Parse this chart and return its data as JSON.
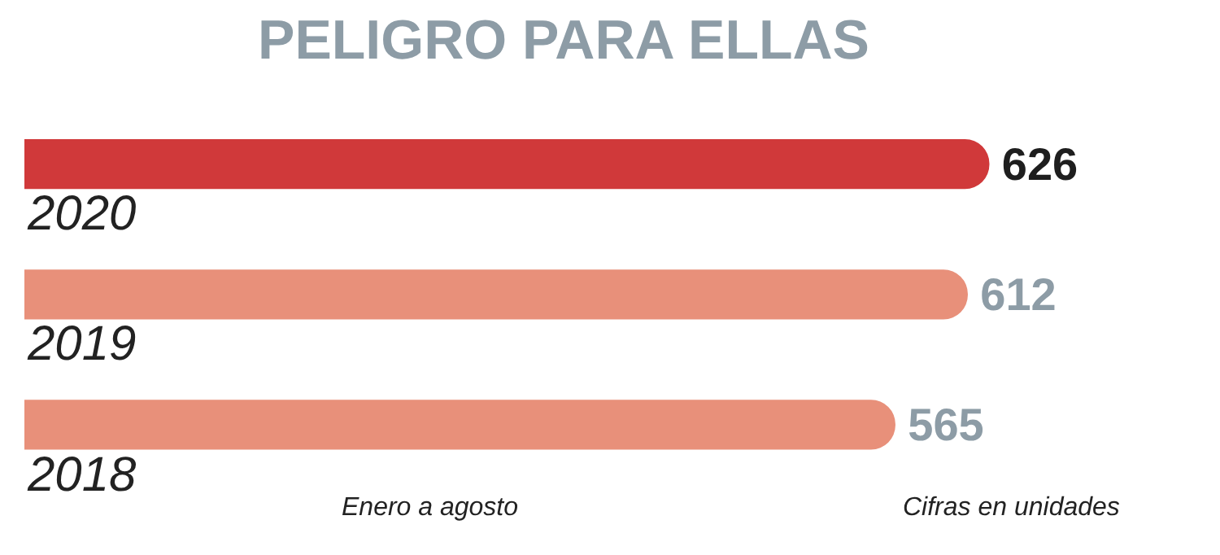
{
  "chart_data": {
    "type": "bar",
    "orientation": "horizontal",
    "title": "PELIGRO PARA ELLAS",
    "categories": [
      "2020",
      "2019",
      "2018"
    ],
    "values": [
      626,
      612,
      565
    ],
    "colors": [
      "#d0393a",
      "#e8907a",
      "#e8907a"
    ],
    "data_labels": true,
    "legend": false,
    "annotations": [
      "Enero a agosto",
      "Cifras en unidades"
    ]
  }
}
